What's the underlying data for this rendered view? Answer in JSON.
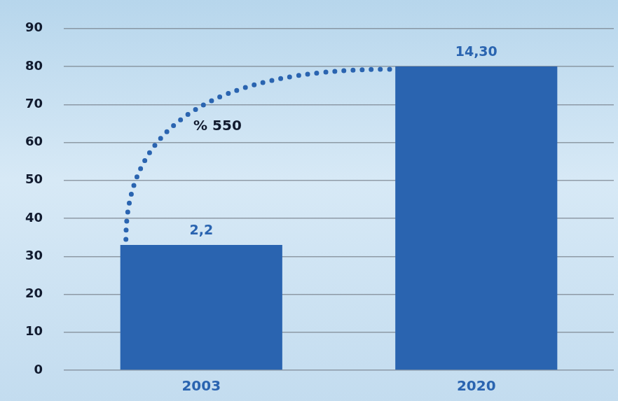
{
  "chart_data": {
    "type": "bar",
    "categories": [
      "2003",
      "2020"
    ],
    "values": [
      33,
      80
    ],
    "color": "#2a64b0",
    "ylim": [
      0,
      90
    ],
    "yticks": [
      0,
      10,
      20,
      30,
      40,
      50,
      60,
      70,
      80,
      90
    ],
    "grid": true,
    "annotations": [
      {
        "text": "2,2",
        "x": "2003"
      },
      {
        "text": "14,30",
        "x": "2020"
      },
      {
        "text": "% 550"
      }
    ]
  }
}
